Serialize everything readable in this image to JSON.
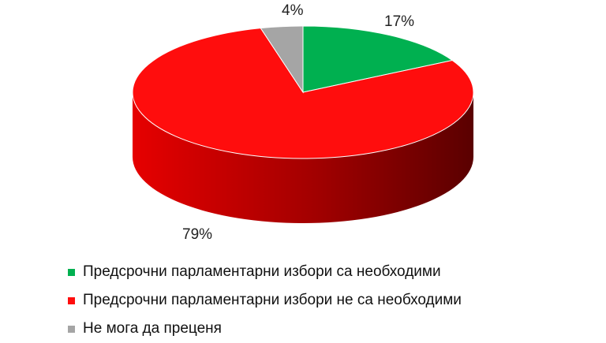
{
  "chart_data": {
    "type": "pie",
    "style": "3d",
    "start": "top",
    "direction": "clockwise",
    "legend_position": "bottom-left",
    "series": [
      {
        "name": "Предсрочни парламентарни избори са необходими",
        "value": 17,
        "label": "17%",
        "color": "#00b050"
      },
      {
        "name": "Предсрочни парламентарни избори не са необходими",
        "value": 79,
        "label": "79%",
        "color": "#ff0d0d"
      },
      {
        "name": "Не мога да преценя",
        "value": 4,
        "label": "4%",
        "color": "#a5a5a5"
      }
    ]
  }
}
